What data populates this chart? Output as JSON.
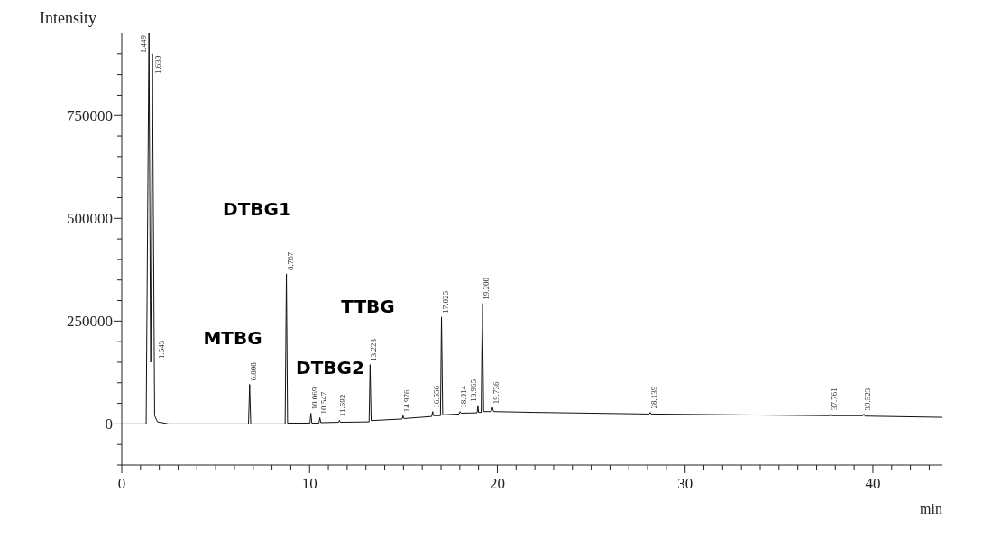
{
  "chart_data": {
    "type": "line",
    "xlabel": "min",
    "ylabel": "Intensity",
    "color": "#111111",
    "marker": "none",
    "line_style": "solid",
    "x": [
      0,
      1.3,
      1.449,
      1.52,
      1.543,
      1.58,
      1.63,
      1.75,
      1.9,
      2.5,
      6.75,
      6.808,
      6.87,
      8.7,
      8.767,
      8.83,
      10.02,
      10.069,
      10.12,
      10.5,
      10.547,
      10.6,
      11.55,
      11.592,
      11.64,
      13.17,
      13.223,
      13.28,
      14.93,
      14.976,
      15.03,
      16.5,
      16.556,
      16.6,
      16.97,
      17.025,
      17.09,
      17.96,
      18.014,
      18.07,
      18.92,
      18.965,
      19.0,
      19.14,
      19.2,
      19.27,
      19.68,
      19.736,
      19.8,
      22,
      28.09,
      28.139,
      28.19,
      37.71,
      37.761,
      37.81,
      39.47,
      39.523,
      39.58,
      43.7
    ],
    "values": [
      0,
      0,
      950000,
      300000,
      150000,
      400000,
      900000,
      20000,
      5000,
      0,
      0,
      96000,
      0,
      0,
      365000,
      2000,
      2000,
      26000,
      2000,
      2000,
      15000,
      3000,
      4000,
      9000,
      4000,
      5000,
      144000,
      8000,
      12000,
      20000,
      13000,
      18000,
      30000,
      20000,
      20000,
      260000,
      22000,
      24000,
      30000,
      26000,
      27000,
      45000,
      28000,
      28000,
      293000,
      30000,
      30000,
      40000,
      30000,
      28000,
      24000,
      28000,
      24000,
      20000,
      25000,
      20000,
      20000,
      24000,
      19000,
      16000
    ],
    "xlim": [
      0,
      43.7
    ],
    "xticks": [
      0,
      {
        "value": 1,
        "label": null
      },
      {
        "value": 2,
        "label": null
      },
      {
        "value": 3,
        "label": null
      },
      {
        "value": 4,
        "label": null
      },
      {
        "value": 5,
        "label": null
      },
      {
        "value": 6,
        "label": null
      },
      {
        "value": 7,
        "label": null
      },
      {
        "value": 8,
        "label": null
      },
      {
        "value": 9,
        "label": null
      },
      10,
      {
        "value": 11,
        "label": null
      },
      {
        "value": 12,
        "label": null
      },
      {
        "value": 13,
        "label": null
      },
      {
        "value": 14,
        "label": null
      },
      {
        "value": 15,
        "label": null
      },
      {
        "value": 16,
        "label": null
      },
      {
        "value": 17,
        "label": null
      },
      {
        "value": 18,
        "label": null
      },
      {
        "value": 19,
        "label": null
      },
      20,
      {
        "value": 21,
        "label": null
      },
      {
        "value": 22,
        "label": null
      },
      {
        "value": 23,
        "label": null
      },
      {
        "value": 24,
        "label": null
      },
      {
        "value": 25,
        "label": null
      },
      {
        "value": 26,
        "label": null
      },
      {
        "value": 27,
        "label": null
      },
      {
        "value": 28,
        "label": null
      },
      {
        "value": 29,
        "label": null
      },
      30,
      {
        "value": 31,
        "label": null
      },
      {
        "value": 32,
        "label": null
      },
      {
        "value": 33,
        "label": null
      },
      {
        "value": 34,
        "label": null
      },
      {
        "value": 35,
        "label": null
      },
      {
        "value": 36,
        "label": null
      },
      {
        "value": 37,
        "label": null
      },
      {
        "value": 38,
        "label": null
      },
      {
        "value": 39,
        "label": null
      },
      40,
      {
        "value": 41,
        "label": null
      },
      {
        "value": 42,
        "label": null
      },
      {
        "value": 43,
        "label": null
      }
    ],
    "ylim": [
      -100000,
      950000
    ],
    "yticks": [
      {
        "value": -100000,
        "label": null
      },
      {
        "value": -50000,
        "label": null
      },
      0,
      {
        "value": 50000,
        "label": null
      },
      {
        "value": 100000,
        "label": null
      },
      {
        "value": 150000,
        "label": null
      },
      {
        "value": 200000,
        "label": null
      },
      250000,
      {
        "value": 300000,
        "label": null
      },
      {
        "value": 350000,
        "label": null
      },
      {
        "value": 400000,
        "label": null
      },
      {
        "value": 450000,
        "label": null
      },
      500000,
      {
        "value": 550000,
        "label": null
      },
      {
        "value": 600000,
        "label": null
      },
      {
        "value": 650000,
        "label": null
      },
      {
        "value": 700000,
        "label": null
      },
      750000,
      {
        "value": 800000,
        "label": null
      },
      {
        "value": 850000,
        "label": null
      },
      {
        "value": 900000,
        "label": null
      }
    ],
    "annotations": [
      "MTBG",
      "DTBG1",
      "DTBG2",
      "TTBG",
      {
        "text": "1.449",
        "x": 1.449,
        "y": 950000
      },
      {
        "text": "1.630",
        "x": 1.63,
        "y": 900000
      },
      {
        "text": "1.543",
        "x": 1.543,
        "y": 150000
      },
      {
        "text": "6.808",
        "x": 6.808,
        "y": 96000
      },
      {
        "text": "8.767",
        "x": 8.767,
        "y": 365000
      },
      {
        "text": "10.069",
        "x": 10.069,
        "y": 26000
      },
      {
        "text": "10.547",
        "x": 10.547,
        "y": 15000
      },
      {
        "text": "11.592",
        "x": 11.592,
        "y": 9000
      },
      {
        "text": "13.223",
        "x": 13.223,
        "y": 144000
      },
      {
        "text": "14.976",
        "x": 14.976,
        "y": 20000
      },
      {
        "text": "16.556",
        "x": 16.556,
        "y": 30000
      },
      {
        "text": "17.025",
        "x": 17.025,
        "y": 260000
      },
      {
        "text": "18.014",
        "x": 18.014,
        "y": 30000
      },
      {
        "text": "18.965",
        "x": 18.965,
        "y": 45000
      },
      {
        "text": "19.200",
        "x": 19.2,
        "y": 293000
      },
      {
        "text": "19.736",
        "x": 19.736,
        "y": 40000
      },
      {
        "text": "28.139",
        "x": 28.139,
        "y": 28000
      },
      {
        "text": "37.761",
        "x": 37.761,
        "y": 25000
      },
      {
        "text": "39.523",
        "x": 39.523,
        "y": 24000
      }
    ]
  }
}
